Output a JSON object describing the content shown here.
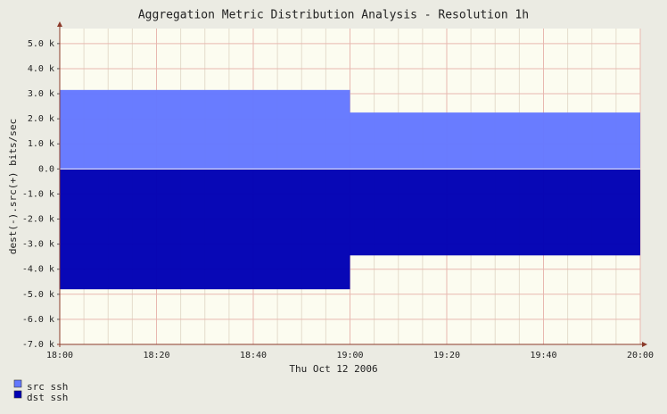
{
  "chart_data": {
    "type": "step-area",
    "title": "Aggregation Metric Distribution Analysis - Resolution 1h",
    "x_label": "Thu Oct 12 2006",
    "y_label": "dest(-).src(+) bits/sec",
    "xlim": [
      0,
      120
    ],
    "xticks": [
      {
        "value": 0,
        "label": "18:00"
      },
      {
        "value": 20,
        "label": "18:20"
      },
      {
        "value": 40,
        "label": "18:40"
      },
      {
        "value": 60,
        "label": "19:00"
      },
      {
        "value": 80,
        "label": "19:20"
      },
      {
        "value": 100,
        "label": "19:40"
      },
      {
        "value": 120,
        "label": "20:00"
      }
    ],
    "ylim": [
      -7000,
      5600
    ],
    "yticks": [
      {
        "value": -7000,
        "label": "-7.0 k"
      },
      {
        "value": -6000,
        "label": "-6.0 k"
      },
      {
        "value": -5000,
        "label": "-5.0 k"
      },
      {
        "value": -4000,
        "label": "-4.0 k"
      },
      {
        "value": -3000,
        "label": "-3.0 k"
      },
      {
        "value": -2000,
        "label": "-2.0 k"
      },
      {
        "value": -1000,
        "label": "-1.0 k"
      },
      {
        "value": 0,
        "label": "0.0"
      },
      {
        "value": 1000,
        "label": "1.0 k"
      },
      {
        "value": 2000,
        "label": "2.0 k"
      },
      {
        "value": 3000,
        "label": "3.0 k"
      },
      {
        "value": 4000,
        "label": "4.0 k"
      },
      {
        "value": 5000,
        "label": "5.0 k"
      }
    ],
    "grid": true,
    "x": [
      0,
      60
    ],
    "series": [
      {
        "name": "src ssh",
        "color": "#6478ff",
        "values": [
          3150,
          2250
        ]
      },
      {
        "name": "dst ssh",
        "color": "#0000b4",
        "values": [
          -4800,
          -3450
        ]
      }
    ]
  }
}
